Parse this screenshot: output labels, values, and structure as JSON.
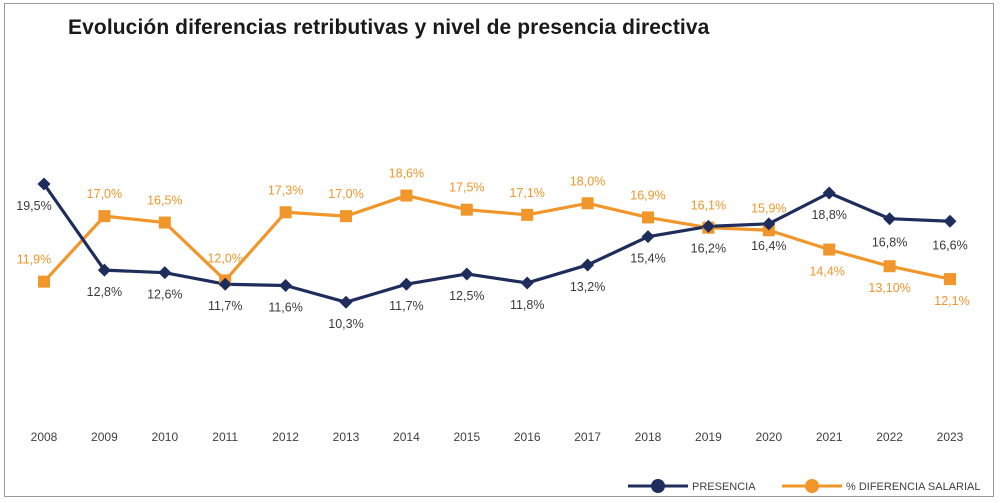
{
  "title": "Evolución diferencias retributivas y nivel de presencia directiva",
  "chart_data": {
    "type": "line",
    "title": "Evolución diferencias retributivas y nivel de presencia directiva",
    "x": [
      "2008",
      "2009",
      "2010",
      "2011",
      "2012",
      "2013",
      "2014",
      "2015",
      "2016",
      "2017",
      "2018",
      "2019",
      "2020",
      "2021",
      "2022",
      "2023"
    ],
    "series": [
      {
        "name": "PRESENCIA",
        "color": "#1f2d5c",
        "marker": "diamond",
        "values": [
          19.5,
          12.8,
          12.6,
          11.7,
          11.6,
          10.3,
          11.7,
          12.5,
          11.8,
          13.2,
          15.4,
          16.2,
          16.4,
          18.8,
          16.8,
          16.6
        ],
        "labels": [
          "19,5%",
          "12,8%",
          "12,6%",
          "11,7%",
          "11,6%",
          "10,3%",
          "11,7%",
          "12,5%",
          "11,8%",
          "13,2%",
          "15,4%",
          "16,2%",
          "16,4%",
          "18,8%",
          "16,8%",
          "16,6%"
        ],
        "label_color": "#3a3a3a"
      },
      {
        "name": "% DIFERENCIA SALARIAL",
        "color": "#f0962a",
        "marker": "square",
        "values": [
          11.9,
          17.0,
          16.5,
          12.0,
          17.3,
          17.0,
          18.6,
          17.5,
          17.1,
          18.0,
          16.9,
          16.1,
          15.9,
          14.4,
          13.1,
          12.1
        ],
        "labels": [
          "11,9%",
          "17,0%",
          "16,5%",
          "12,0%",
          "17,3%",
          "17,0%",
          "18,6%",
          "17,5%",
          "17,1%",
          "18,0%",
          "16,9%",
          "16,1%",
          "15,9%",
          "14,4%",
          "13,10%",
          "12,1%"
        ],
        "label_color": "#f0962a"
      }
    ],
    "legend_position": "bottom-right",
    "grid": false
  }
}
